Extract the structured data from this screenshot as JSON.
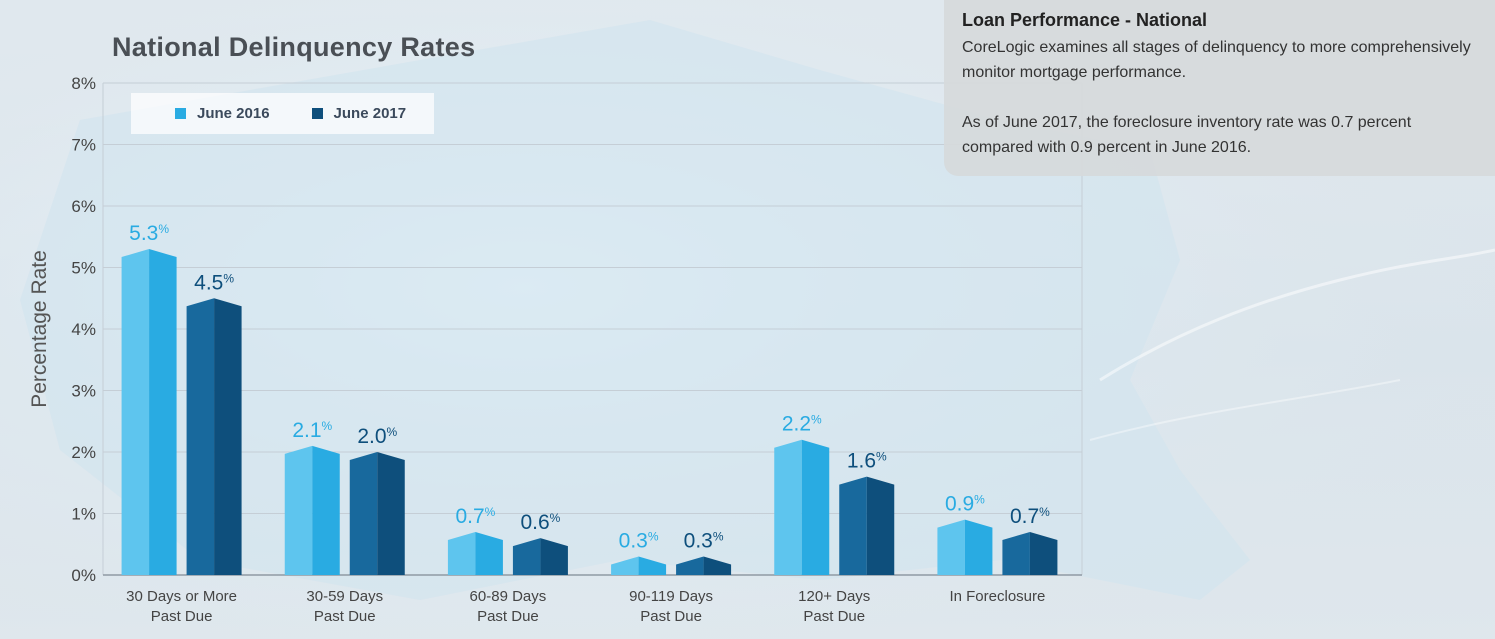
{
  "info_panel": {
    "title": "Loan Performance - National",
    "paragraph_1": "CoreLogic examines all stages of delinquency to more comprehensively monitor mortgage performance.",
    "paragraph_2": "As of June 2017, the foreclosure inventory rate was 0.7 percent compared with 0.9 percent in June 2016."
  },
  "colors": {
    "series_2016": "#29abe2",
    "series_2016_light": "#5ec5ee",
    "series_2017": "#0e4f7c",
    "series_2017_light": "#18699d",
    "grid": "#c5ced6",
    "axis_text": "#444444",
    "title": "#4a4f55"
  },
  "chart_data": {
    "type": "bar",
    "title": "National Delinquency Rates",
    "xlabel": "",
    "ylabel": "Percentage Rate",
    "ylim": [
      0,
      8
    ],
    "yticks": [
      "0%",
      "1%",
      "2%",
      "3%",
      "4%",
      "5%",
      "6%",
      "7%",
      "8%"
    ],
    "grid": true,
    "legend_position": "top-left",
    "categories": [
      [
        "30 Days or More",
        "Past Due"
      ],
      [
        "30-59 Days",
        "Past Due"
      ],
      [
        "60-89 Days",
        "Past Due"
      ],
      [
        "90-119 Days",
        "Past Due"
      ],
      [
        "120+ Days",
        "Past Due"
      ],
      [
        "In Foreclosure"
      ]
    ],
    "series": [
      {
        "name": "June 2016",
        "values": [
          5.3,
          2.1,
          0.7,
          0.3,
          2.2,
          0.9
        ],
        "labels": [
          "5.3",
          "2.1",
          "0.7",
          "0.3",
          "2.2",
          "0.9"
        ]
      },
      {
        "name": "June 2017",
        "values": [
          4.5,
          2.0,
          0.6,
          0.3,
          1.6,
          0.7
        ],
        "labels": [
          "4.5",
          "2.0",
          "0.6",
          "0.3",
          "1.6",
          "0.7"
        ]
      }
    ],
    "value_suffix": "%"
  }
}
